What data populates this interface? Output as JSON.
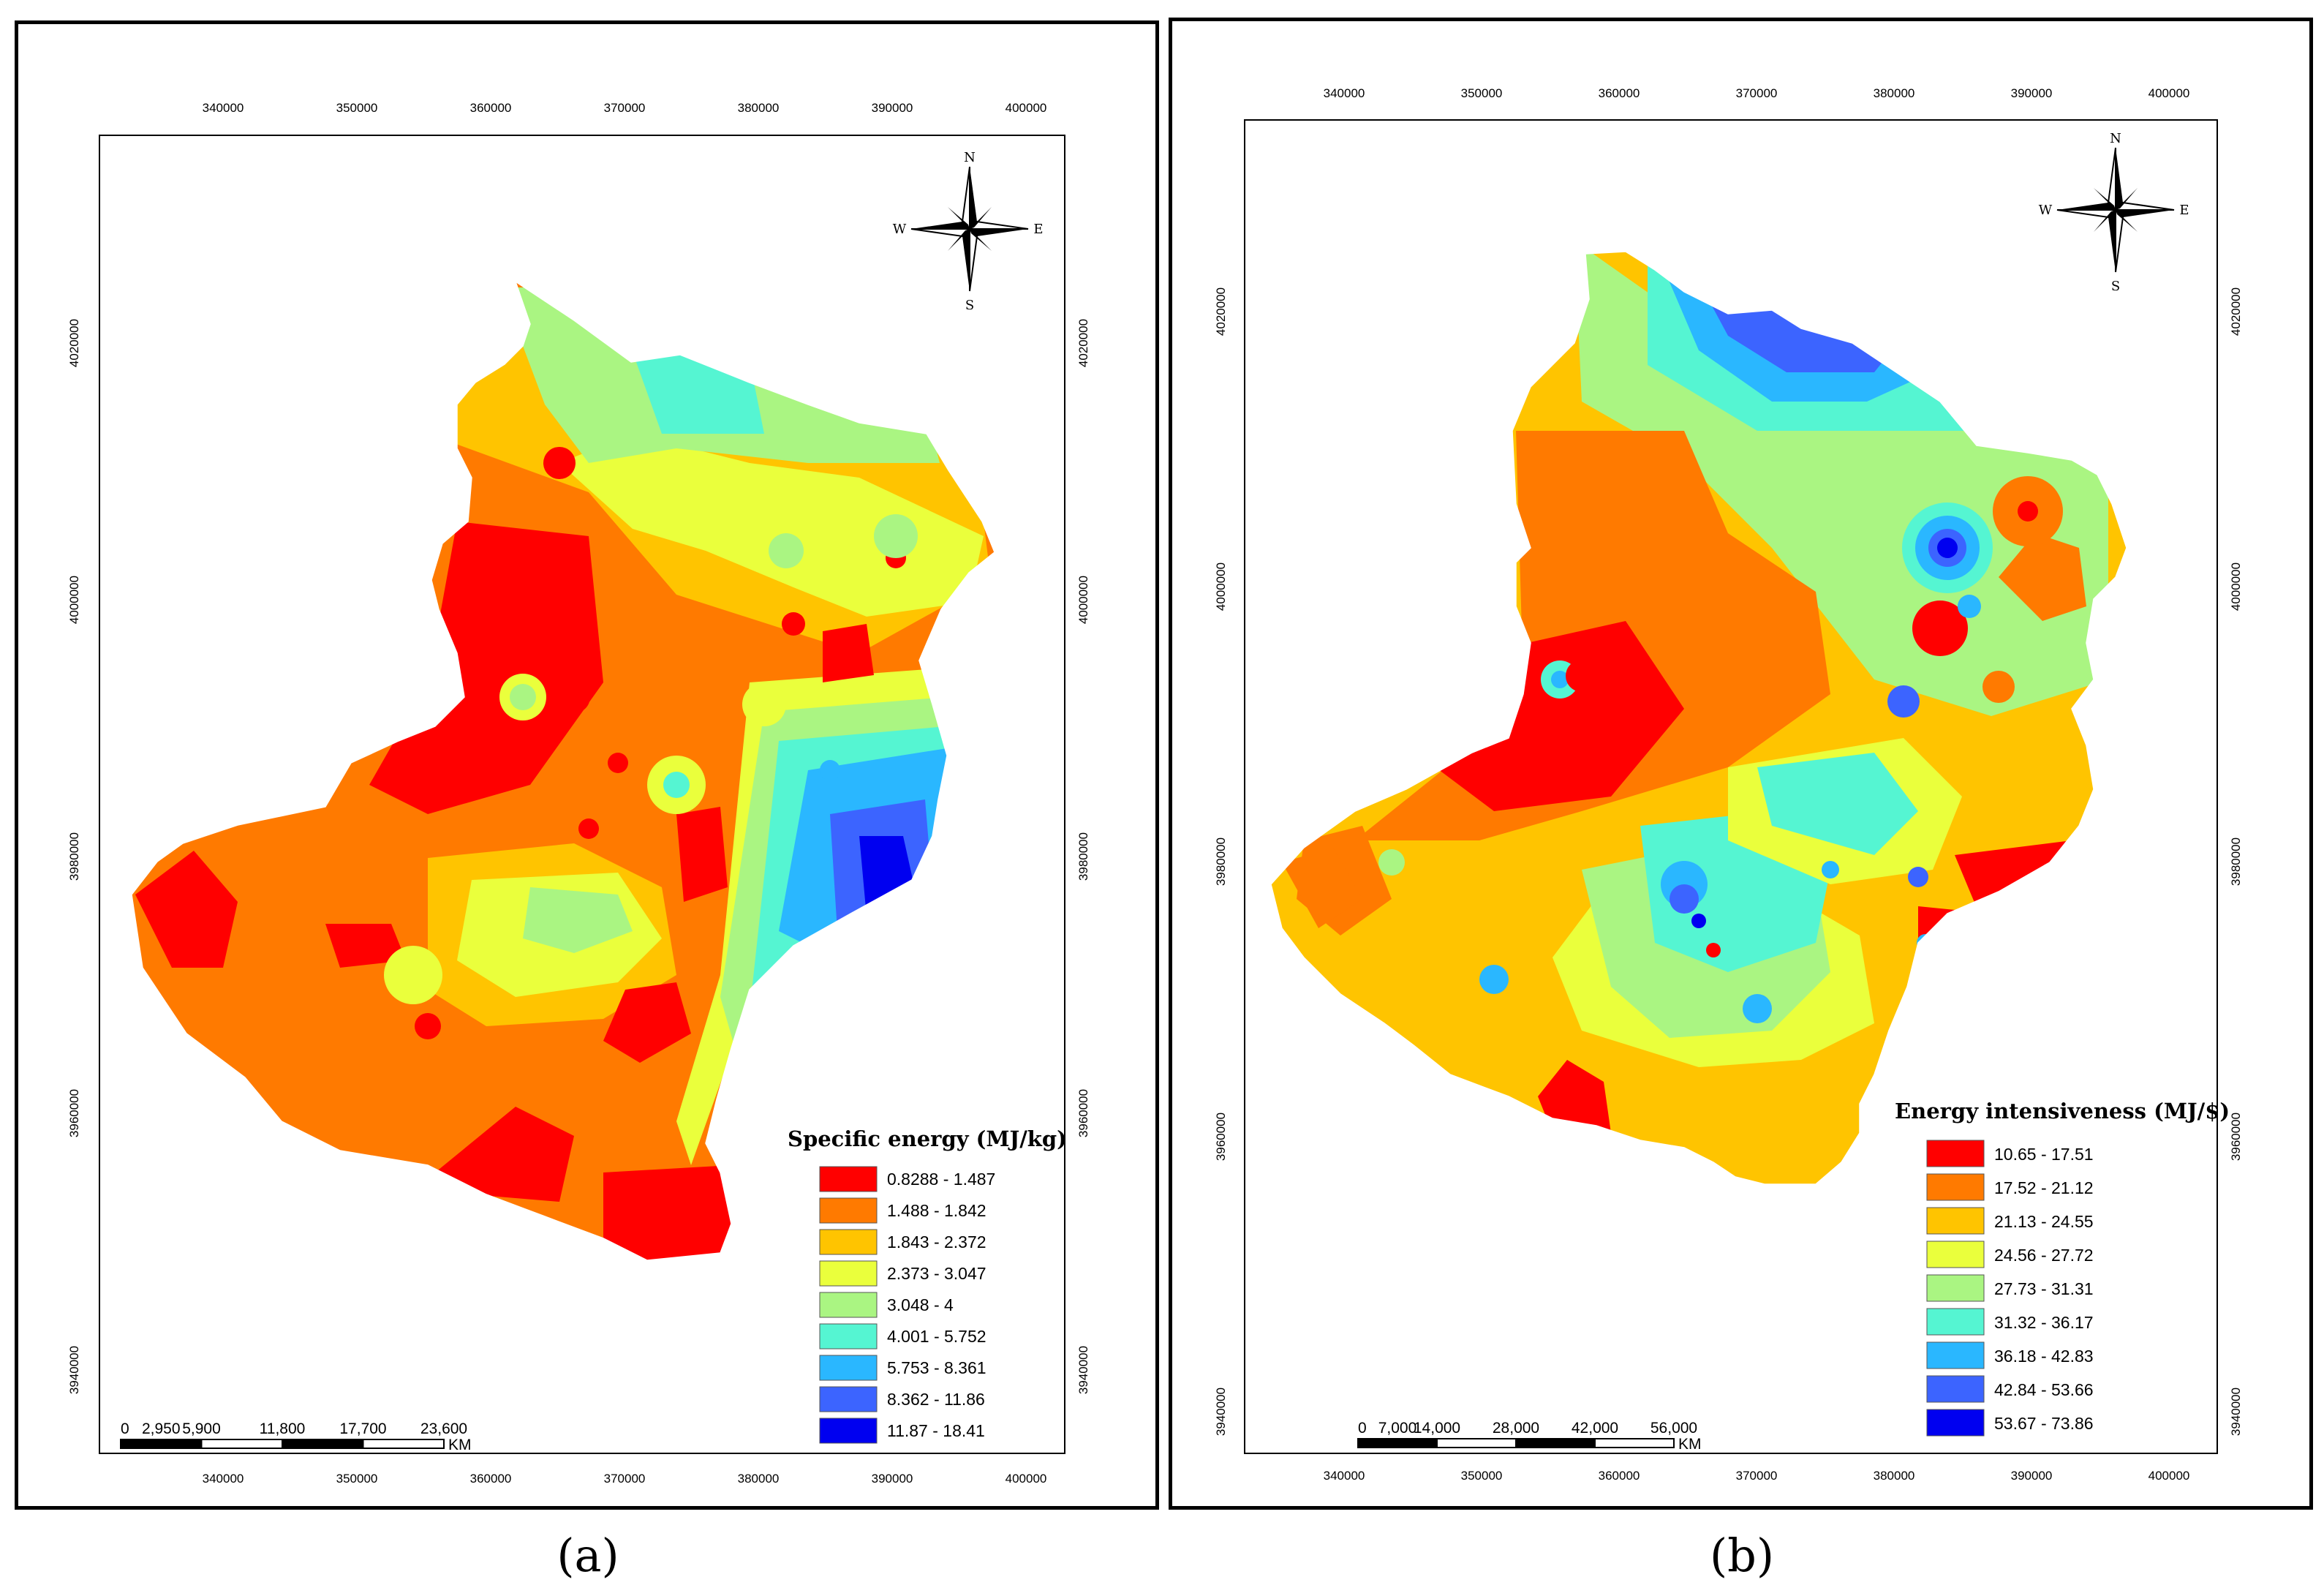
{
  "panels": [
    {
      "id": "a",
      "caption": "(a)",
      "legend_title": "Specific energy (MJ/kg)",
      "legend_classes": [
        {
          "label": "0.8288 - 1.487",
          "color": "#ff0000"
        },
        {
          "label": "1.488 - 1.842",
          "color": "#ff7a00"
        },
        {
          "label": "1.843 - 2.372",
          "color": "#ffc400"
        },
        {
          "label": "2.373 - 3.047",
          "color": "#eaff3c"
        },
        {
          "label": "3.048 - 4",
          "color": "#aaf582"
        },
        {
          "label": "4.001 - 5.752",
          "color": "#55f5d2"
        },
        {
          "label": "5.753 - 8.361",
          "color": "#2ab7ff"
        },
        {
          "label": "8.362 - 11.86",
          "color": "#3c64ff"
        },
        {
          "label": "11.87 - 18.41",
          "color": "#0000f0"
        }
      ],
      "x_ticks": [
        "340000",
        "350000",
        "360000",
        "370000",
        "380000",
        "390000",
        "400000"
      ],
      "y_ticks": [
        "4020000",
        "4000000",
        "3980000",
        "3960000",
        "3940000"
      ],
      "scale_labels": [
        "0",
        "2,950",
        "5,900",
        "11,800",
        "17,700",
        "23,600"
      ],
      "scale_unit": "KM",
      "compass": {
        "n": "N",
        "s": "S",
        "e": "E",
        "w": "W"
      }
    },
    {
      "id": "b",
      "caption": "(b)",
      "legend_title": "Energy intensiveness (MJ/$)",
      "legend_classes": [
        {
          "label": "10.65 - 17.51",
          "color": "#ff0000"
        },
        {
          "label": "17.52 - 21.12",
          "color": "#ff7a00"
        },
        {
          "label": "21.13 - 24.55",
          "color": "#ffc400"
        },
        {
          "label": "24.56 - 27.72",
          "color": "#eaff3c"
        },
        {
          "label": "27.73 - 31.31",
          "color": "#aaf582"
        },
        {
          "label": "31.32 - 36.17",
          "color": "#55f5d2"
        },
        {
          "label": "36.18 - 42.83",
          "color": "#2ab7ff"
        },
        {
          "label": "42.84 - 53.66",
          "color": "#3c64ff"
        },
        {
          "label": "53.67 - 73.86",
          "color": "#0000f0"
        }
      ],
      "x_ticks": [
        "340000",
        "350000",
        "360000",
        "370000",
        "380000",
        "390000",
        "400000"
      ],
      "y_ticks": [
        "4020000",
        "4000000",
        "3980000",
        "3960000",
        "3940000"
      ],
      "scale_labels": [
        "0",
        "7,000",
        "14,000",
        "28,000",
        "42,000",
        "56,000"
      ],
      "scale_unit": "KM",
      "compass": {
        "n": "N",
        "s": "S",
        "e": "E",
        "w": "W"
      }
    }
  ]
}
